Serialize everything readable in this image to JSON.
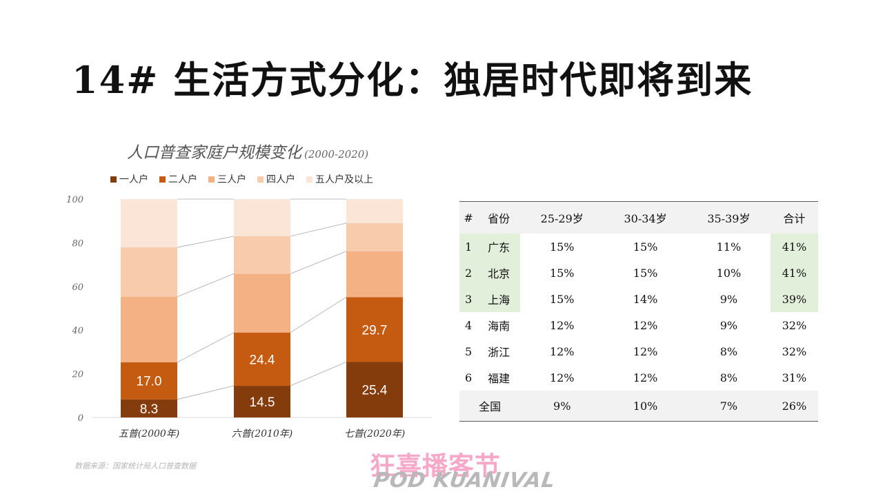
{
  "title": "14# 生活方式分化：独居时代即将到来",
  "chart_title": "人口普查家庭户规模变化",
  "chart_range": "(2000-2020)",
  "source_note": "数据来源：国家统计局人口普查数据",
  "logo": {
    "cn": "狂喜播客节",
    "en": "POD KUANIVAL"
  },
  "chart_data": {
    "type": "bar",
    "stacked": true,
    "title": "人口普查家庭户规模变化 (2000-2020)",
    "categories": [
      "五普(2000年)",
      "六普(2010年)",
      "七普(2020年)"
    ],
    "series": [
      {
        "name": "一人户",
        "values": [
          8.3,
          14.5,
          25.4
        ],
        "color": "#843c0c",
        "show_labels": true
      },
      {
        "name": "二人户",
        "values": [
          17.0,
          24.4,
          29.7
        ],
        "color": "#c55a11",
        "show_labels": true
      },
      {
        "name": "三人户",
        "values": [
          30.0,
          26.9,
          21.0
        ],
        "color": "#f4b183",
        "show_labels": false
      },
      {
        "name": "四人户",
        "values": [
          22.6,
          17.2,
          12.9
        ],
        "color": "#f8cbad",
        "show_labels": false
      },
      {
        "name": "五人户及以上",
        "values": [
          22.1,
          17.0,
          11.0
        ],
        "color": "#fbe5d6",
        "show_labels": false
      }
    ],
    "y_ticks": [
      "0",
      "20",
      "40",
      "60",
      "80",
      "100"
    ],
    "ylim": [
      0,
      100
    ],
    "grid": false,
    "series_lines": true,
    "legend_position": "top"
  },
  "table": {
    "headers": [
      "#",
      "省份",
      "25-29岁",
      "30-34岁",
      "35-39岁",
      "合计"
    ],
    "rows": [
      {
        "rank": "1",
        "province": "广东",
        "a": "15%",
        "b": "15%",
        "c": "11%",
        "total": "41%",
        "highlight": true
      },
      {
        "rank": "2",
        "province": "北京",
        "a": "15%",
        "b": "15%",
        "c": "10%",
        "total": "41%",
        "highlight": true
      },
      {
        "rank": "3",
        "province": "上海",
        "a": "15%",
        "b": "14%",
        "c": "9%",
        "total": "39%",
        "highlight": true
      },
      {
        "rank": "4",
        "province": "海南",
        "a": "12%",
        "b": "12%",
        "c": "9%",
        "total": "32%",
        "highlight": false
      },
      {
        "rank": "5",
        "province": "浙江",
        "a": "12%",
        "b": "12%",
        "c": "8%",
        "total": "32%",
        "highlight": false
      },
      {
        "rank": "6",
        "province": "福建",
        "a": "12%",
        "b": "12%",
        "c": "8%",
        "total": "31%",
        "highlight": false
      }
    ],
    "total_row": {
      "label": "全国",
      "a": "9%",
      "b": "10%",
      "c": "7%",
      "total": "26%"
    },
    "highlight_color": "#e2efda"
  }
}
